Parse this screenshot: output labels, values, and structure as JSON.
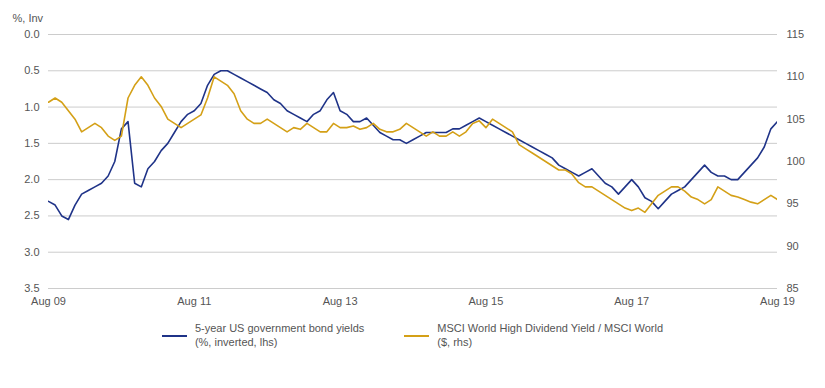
{
  "chart_data": {
    "type": "line",
    "ylabel": "%, Inv",
    "x": [
      0,
      1.0909,
      2.1818,
      3.2727,
      4.3636,
      5.4545,
      6.5455,
      7.6364,
      8.7273,
      9.8182,
      10.9091,
      12,
      13.0909,
      14.1818,
      15.2727,
      16.3636,
      17.4545,
      18.5455,
      19.6364,
      20.7273,
      21.8182,
      22.9091,
      24,
      25.0909,
      26.1818,
      27.2727,
      28.3636,
      29.4545,
      30.5455,
      31.6364,
      32.7273,
      33.8182,
      34.9091,
      36,
      37.0909,
      38.1818,
      39.2727,
      40.3636,
      41.4545,
      42.5455,
      43.6364,
      44.7273,
      45.8182,
      46.9091,
      48,
      49.0909,
      50.1818,
      51.2727,
      52.3636,
      53.4545,
      54.5455,
      55.6364,
      56.7273,
      57.8182,
      58.9091,
      60,
      61.0909,
      62.1818,
      63.2727,
      64.3636,
      65.4545,
      66.5455,
      67.6364,
      68.7273,
      69.8182,
      70.9091,
      72,
      73.0909,
      74.1818,
      75.2727,
      76.3636,
      77.4545,
      78.5455,
      79.6364,
      80.7273,
      81.8182,
      82.9091,
      84,
      85.0909,
      86.1818,
      87.2727,
      88.3636,
      89.4545,
      90.5455,
      91.6364,
      92.7273,
      93.8182,
      94.9091,
      96,
      97.0909,
      98.1818,
      99.2727,
      100.3636,
      101.4545,
      102.5455,
      103.6364,
      104.7273,
      105.8182,
      106.9091,
      108,
      109.0909,
      110.1818,
      111.2727,
      112.3636,
      113.4545,
      114.5455,
      115.6364,
      116.7273,
      117.8182,
      118.9091,
      120
    ],
    "series": [
      {
        "name": "5-year US government bond yields\n(%, inverted, lhs)",
        "color": "#1f3388",
        "values": [
          2.3,
          2.35,
          2.5,
          2.55,
          2.35,
          2.2,
          2.15,
          2.1,
          2.05,
          1.95,
          1.75,
          1.3,
          1.2,
          2.05,
          2.1,
          1.85,
          1.75,
          1.6,
          1.5,
          1.35,
          1.2,
          1.1,
          1.05,
          0.95,
          0.7,
          0.55,
          0.5,
          0.5,
          0.55,
          0.6,
          0.65,
          0.7,
          0.75,
          0.8,
          0.9,
          0.95,
          1.05,
          1.1,
          1.15,
          1.2,
          1.1,
          1.05,
          0.9,
          0.8,
          1.05,
          1.1,
          1.2,
          1.2,
          1.15,
          1.25,
          1.35,
          1.4,
          1.45,
          1.45,
          1.5,
          1.45,
          1.4,
          1.35,
          1.35,
          1.35,
          1.35,
          1.3,
          1.3,
          1.25,
          1.2,
          1.15,
          1.2,
          1.25,
          1.3,
          1.35,
          1.4,
          1.45,
          1.5,
          1.55,
          1.6,
          1.65,
          1.7,
          1.8,
          1.85,
          1.9,
          1.95,
          1.9,
          1.85,
          1.95,
          2.05,
          2.1,
          2.2,
          2.1,
          2.0,
          2.1,
          2.25,
          2.3,
          2.4,
          2.3,
          2.2,
          2.15,
          2.1,
          2.0,
          1.9,
          1.8,
          1.9,
          1.95,
          1.95,
          2.0,
          2.0,
          1.9,
          1.8,
          1.7,
          1.55,
          1.3,
          1.2
        ]
      },
      {
        "name": "MSCI World High Dividend Yield / MSCI World\n($, rhs)",
        "color": "#d4a017",
        "axis": "y2",
        "values": [
          107.0,
          107.5,
          107.0,
          106.0,
          105.0,
          103.5,
          104.0,
          104.5,
          104.0,
          103.0,
          102.5,
          103.0,
          107.5,
          109.0,
          110.0,
          109.0,
          107.5,
          106.5,
          105.0,
          104.5,
          104.0,
          104.5,
          105.0,
          105.5,
          107.5,
          110.0,
          109.5,
          109.0,
          108.0,
          106.0,
          105.0,
          104.5,
          104.5,
          105.0,
          104.5,
          104.0,
          103.5,
          104.0,
          103.8,
          104.5,
          104.0,
          103.5,
          103.5,
          104.5,
          104.0,
          104.0,
          104.2,
          103.8,
          104.0,
          104.5,
          103.8,
          103.5,
          103.5,
          103.8,
          104.5,
          104.0,
          103.5,
          103.0,
          103.5,
          103.0,
          103.0,
          103.5,
          103.0,
          103.5,
          104.5,
          104.8,
          104.0,
          105.0,
          104.5,
          104.0,
          103.5,
          102.0,
          101.5,
          101.0,
          100.5,
          100.0,
          99.5,
          99.0,
          99.0,
          98.5,
          97.5,
          97.0,
          97.0,
          96.5,
          96.0,
          95.5,
          95.0,
          94.5,
          94.2,
          94.5,
          94.0,
          95.0,
          96.0,
          96.5,
          97.0,
          97.0,
          96.5,
          95.8,
          95.5,
          95.0,
          95.5,
          97.0,
          96.5,
          96.0,
          95.8,
          95.5,
          95.2,
          95.0,
          95.5,
          96.0,
          95.5
        ]
      }
    ],
    "xlim": [
      0,
      120
    ],
    "xticks": [
      {
        "value": 0,
        "label": "Aug 09"
      },
      {
        "value": 24,
        "label": "Aug 11"
      },
      {
        "value": 48,
        "label": "Aug 13"
      },
      {
        "value": 72,
        "label": "Aug 15"
      },
      {
        "value": 96,
        "label": "Aug 17"
      },
      {
        "value": 120,
        "label": "Aug 19"
      }
    ],
    "ylim": [
      3.5,
      0.0
    ],
    "yticks": [
      {
        "value": 0,
        "label": "0.0"
      },
      0.5,
      {
        "value": 1,
        "label": "1.0"
      },
      1.5,
      {
        "value": 2,
        "label": "2.0"
      },
      2.5,
      {
        "value": 3,
        "label": "3.0"
      },
      3.5
    ],
    "y2lim": [
      85,
      115
    ],
    "y2ticks": [
      85,
      90,
      95,
      100,
      105,
      110,
      115
    ],
    "grid": "y",
    "legend": "bottom"
  }
}
